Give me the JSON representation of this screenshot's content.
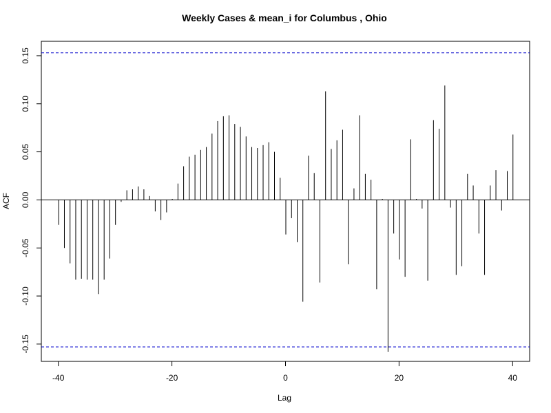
{
  "chart_data": {
    "type": "bar",
    "title": "Weekly Cases & mean_i for Columbus , Ohio",
    "xlabel": "Lag",
    "ylabel": "ACF",
    "xlim": [
      -43,
      43
    ],
    "ylim": [
      -0.168,
      0.165
    ],
    "x_ticks": [
      -40,
      -20,
      0,
      20,
      40
    ],
    "y_ticks": [
      -0.15,
      -0.1,
      -0.05,
      0.0,
      0.05,
      0.1,
      0.15
    ],
    "y_tick_labels": [
      "-0.15",
      "-0.10",
      "-0.05",
      "0.00",
      "0.05",
      "0.10",
      "0.15"
    ],
    "confidence_bound": 0.153,
    "confidence_color": "#0000cc",
    "bar_color": "#000000",
    "lags": [
      -40,
      -39,
      -38,
      -37,
      -36,
      -35,
      -34,
      -33,
      -32,
      -31,
      -30,
      -29,
      -28,
      -27,
      -26,
      -25,
      -24,
      -23,
      -22,
      -21,
      -20,
      -19,
      -18,
      -17,
      -16,
      -15,
      -14,
      -13,
      -12,
      -11,
      -10,
      -9,
      -8,
      -7,
      -6,
      -5,
      -4,
      -3,
      -2,
      -1,
      0,
      1,
      2,
      3,
      4,
      5,
      6,
      7,
      8,
      9,
      10,
      11,
      12,
      13,
      14,
      15,
      16,
      17,
      18,
      19,
      20,
      21,
      22,
      23,
      24,
      25,
      26,
      27,
      28,
      29,
      30,
      31,
      32,
      33,
      34,
      35,
      36,
      37,
      38,
      39,
      40
    ],
    "values": [
      -0.026,
      -0.05,
      -0.066,
      -0.083,
      -0.082,
      -0.083,
      -0.083,
      -0.098,
      -0.083,
      -0.061,
      -0.026,
      -0.002,
      0.01,
      0.011,
      0.014,
      0.011,
      0.004,
      -0.012,
      -0.021,
      -0.013,
      0.001,
      0.017,
      0.035,
      0.045,
      0.047,
      0.052,
      0.055,
      0.069,
      0.082,
      0.087,
      0.088,
      0.079,
      0.076,
      0.066,
      0.055,
      0.054,
      0.057,
      0.06,
      0.05,
      0.023,
      -0.036,
      -0.019,
      -0.044,
      -0.106,
      0.046,
      0.028,
      -0.086,
      0.113,
      0.053,
      0.062,
      0.073,
      -0.067,
      0.012,
      0.088,
      0.027,
      0.021,
      -0.093,
      0.001,
      -0.158,
      -0.035,
      -0.062,
      -0.08,
      0.063,
      0.001,
      -0.009,
      -0.084,
      0.083,
      0.074,
      0.119,
      -0.008,
      -0.078,
      -0.069,
      0.027,
      0.015,
      -0.035,
      -0.078,
      0.015,
      0.031,
      -0.011,
      0.03,
      0.068
    ]
  }
}
